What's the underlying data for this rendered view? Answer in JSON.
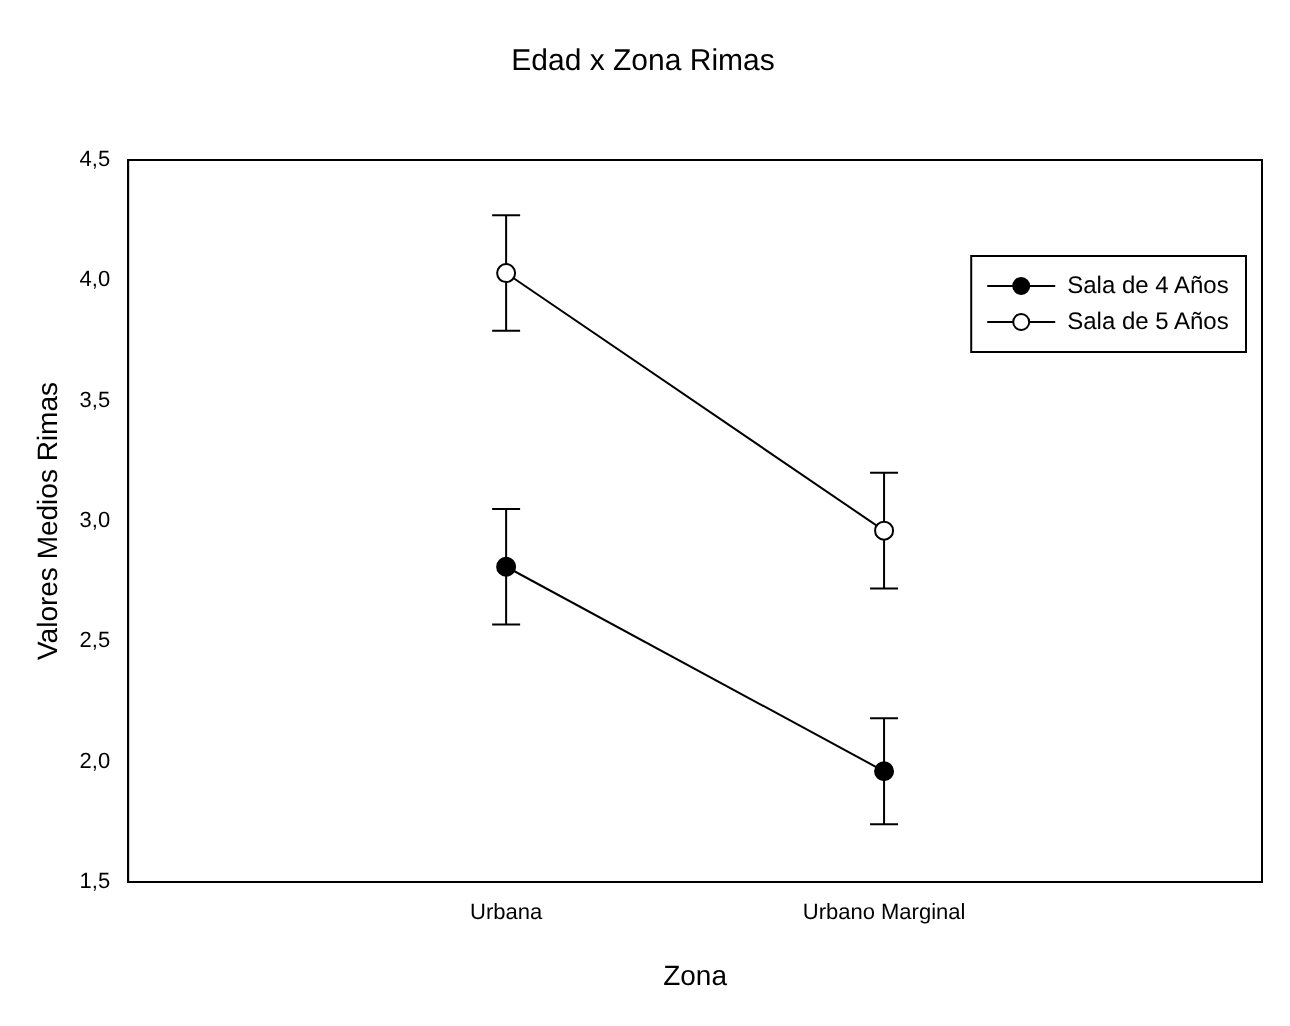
{
  "chart_data": {
    "type": "line",
    "title": "Edad x Zona Rimas",
    "xlabel": "Zona",
    "ylabel": "Valores Medios Rimas",
    "categories": [
      "Urbana",
      "Urbano Marginal"
    ],
    "series": [
      {
        "name": "Sala de 4 Años",
        "color": "#000000",
        "values": [
          2.81,
          1.96
        ],
        "errors": [
          0.24,
          0.22
        ],
        "marker": "circle"
      },
      {
        "name": "Sala de 5 Años",
        "color": "#000000",
        "values": [
          4.03,
          2.96
        ],
        "errors": [
          0.24,
          0.24
        ],
        "marker": "circle"
      }
    ],
    "ylim": [
      1.5,
      4.5
    ],
    "yticks": [
      {
        "value": 1.5,
        "label": "1,5"
      },
      {
        "value": 2.0,
        "label": "2,0"
      },
      {
        "value": 2.5,
        "label": "2,5"
      },
      {
        "value": 3.0,
        "label": "3,0"
      },
      {
        "value": 3.5,
        "label": "3,5"
      },
      {
        "value": 4.0,
        "label": "4,0"
      },
      {
        "value": 4.5,
        "label": "4,5"
      }
    ],
    "grid": false,
    "legend": "top right",
    "line_style": "solid"
  }
}
